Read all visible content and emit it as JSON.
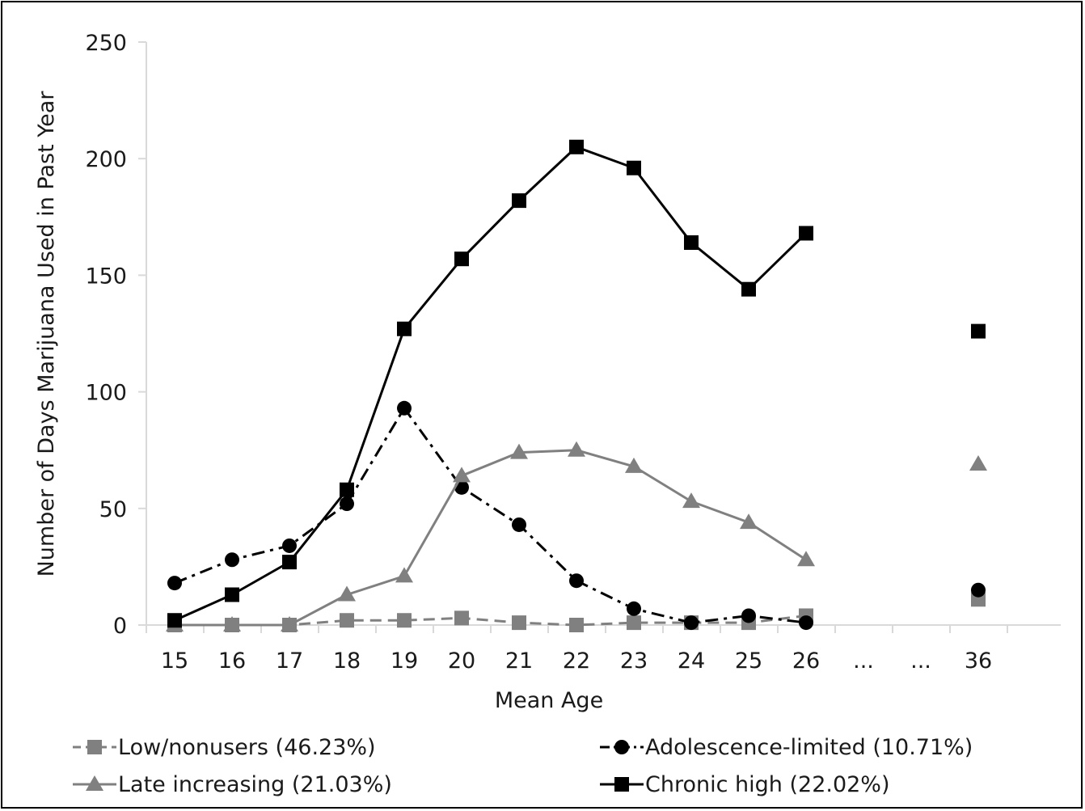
{
  "chart_data": {
    "type": "line",
    "title": "",
    "xlabel": "Mean Age",
    "ylabel": "Number of Days Marijuana Used in Past Year",
    "ylim": [
      0,
      250
    ],
    "yticks": [
      "0",
      "50",
      "100",
      "150",
      "200",
      "250"
    ],
    "categories": [
      "15",
      "16",
      "17",
      "18",
      "19",
      "20",
      "21",
      "22",
      "23",
      "24",
      "25",
      "26",
      "...",
      "...",
      "36"
    ],
    "grid": false,
    "legend": "bottom",
    "series": [
      {
        "name": "Low/nonusers (46.23%)",
        "color": "#808080",
        "marker": "square",
        "line": "dashed",
        "values": [
          0,
          0,
          0,
          2,
          2,
          3,
          1,
          0,
          1,
          1,
          1,
          4,
          null,
          null,
          11
        ]
      },
      {
        "name": "Adolescence-limited (10.71%)",
        "color": "#000000",
        "marker": "circle",
        "line": "dashdot",
        "values": [
          18,
          28,
          34,
          52,
          93,
          59,
          43,
          19,
          7,
          1,
          4,
          1,
          null,
          null,
          15
        ]
      },
      {
        "name": "Late increasing (21.03%)",
        "color": "#808080",
        "marker": "triangle",
        "line": "solid",
        "values": [
          0,
          0,
          0,
          13,
          21,
          64,
          74,
          75,
          68,
          53,
          44,
          28,
          null,
          null,
          69
        ]
      },
      {
        "name": "Chronic high (22.02%)",
        "color": "#000000",
        "marker": "square",
        "line": "solid",
        "values": [
          2,
          13,
          27,
          58,
          127,
          157,
          182,
          205,
          196,
          164,
          144,
          168,
          null,
          null,
          126
        ]
      }
    ]
  }
}
